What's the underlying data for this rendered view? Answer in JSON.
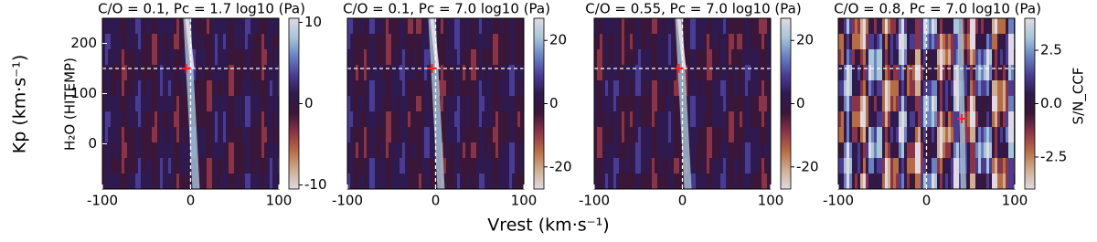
{
  "xlabel": "Vrest (km·s⁻¹)",
  "ylabel": "Kp (km·s⁻¹)",
  "row_label": "H₂O (HITEMP)",
  "colorbar_label": "S/N_CCF",
  "colormap": [
    "#e2d9e2",
    "#cfae91",
    "#b66d46",
    "#8a3447",
    "#3a1639",
    "#2e1a4e",
    "#4a3c93",
    "#6a82c1",
    "#a9c6d8",
    "#e2d9e2"
  ],
  "chart_data": [
    {
      "type": "heatmap",
      "title": "C/O = 0.1, Pc = 1.7 log10 (Pa)",
      "xlim": [
        -100,
        100
      ],
      "xticks": [
        -100,
        0,
        100
      ],
      "ylim": [
        -90,
        250
      ],
      "yticks": [
        0,
        100,
        200
      ],
      "clim": [
        -10.5,
        10.5
      ],
      "cticks": [
        -10,
        0,
        10
      ],
      "vline": 0,
      "hline": 150,
      "peak": {
        "x": -5,
        "y": 150
      },
      "color": "#ff2020"
    },
    {
      "type": "heatmap",
      "title": "C/O = 0.1, Pc = 7.0 log10 (Pa)",
      "xlim": [
        -100,
        100
      ],
      "xticks": [
        -100,
        0,
        100
      ],
      "ylim": [
        -90,
        250
      ],
      "clim": [
        -27,
        27
      ],
      "cticks": [
        -20,
        0,
        20
      ],
      "vline": 0,
      "hline": 150,
      "peak": {
        "x": -4,
        "y": 150
      },
      "color": "#ff2020"
    },
    {
      "type": "heatmap",
      "title": "C/O = 0.55, Pc = 7.0 log10 (Pa)",
      "xlim": [
        -100,
        100
      ],
      "xticks": [
        -100,
        0,
        100
      ],
      "ylim": [
        -90,
        250
      ],
      "clim": [
        -27,
        27
      ],
      "cticks": [
        -20,
        0,
        20
      ],
      "vline": 0,
      "hline": 150,
      "peak": {
        "x": -4,
        "y": 150
      },
      "color": "#ff2020"
    },
    {
      "type": "heatmap",
      "title": "C/O = 0.8, Pc = 7.0 log10 (Pa)",
      "xlim": [
        -100,
        100
      ],
      "xticks": [
        -100,
        0,
        100
      ],
      "ylim": [
        -90,
        250
      ],
      "clim": [
        -4,
        4
      ],
      "cticks": [
        -2.5,
        {
          "value": 0,
          "label": "0.0"
        },
        2.5
      ],
      "vline": 0,
      "hline": 150,
      "peak": {
        "x": 40,
        "y": 50
      },
      "color": "#ff2020"
    }
  ]
}
